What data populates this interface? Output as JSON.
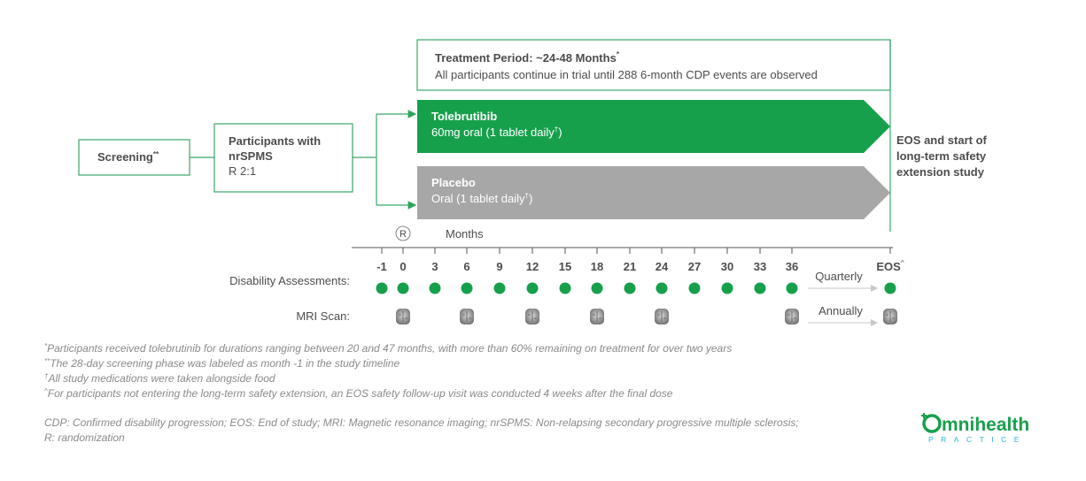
{
  "treatment_period": {
    "title": "Treatment Period: ~24-48 Months",
    "title_mark": "*",
    "description": "All participants continue in trial until 288 6-month CDP events are observed"
  },
  "screening": {
    "label": "Screening",
    "mark": "**"
  },
  "participants": {
    "title_lines": [
      "Participants with",
      "nrSPMS"
    ],
    "ratio": "R 2:1"
  },
  "arms": [
    {
      "name": "Tolebrutibib",
      "dose": "60mg oral (1 tablet daily",
      "dose_mark": "†",
      "dose_end": ")"
    },
    {
      "name": "Placebo",
      "dose": "Oral (1 tablet daily",
      "dose_mark": "†",
      "dose_end": ")"
    }
  ],
  "end_of_study": {
    "lines": [
      "EOS and start of",
      "long-term safety",
      "extension study"
    ]
  },
  "timeline": {
    "randomization": "R",
    "unit": "Months",
    "ticks": [
      -1,
      0,
      3,
      6,
      9,
      12,
      15,
      18,
      21,
      24,
      27,
      30,
      33,
      36
    ],
    "end_tick": "EOS",
    "end_mark": "^"
  },
  "schedule": [
    {
      "label": "Disability Assessments:",
      "frequency": "Quarterly"
    },
    {
      "label": "MRI Scan:",
      "frequency": "Annually"
    }
  ],
  "footnotes": [
    {
      "mark": "*",
      "text": "Participants received tolebrutinib for durations ranging between 20 and 47 months, with more than 60% remaining on treatment for over two years"
    },
    {
      "mark": "**",
      "text": "The 28-day screening phase was labeled as month -1 in the study timeline"
    },
    {
      "mark": "†",
      "text": "All study medications were taken alongside food"
    },
    {
      "mark": "^",
      "text": "For participants not entering the long-term safety extension, an EOS safety follow-up visit was conducted 4 weeks after the final dose"
    }
  ],
  "abbreviations": [
    "CDP: Confirmed disability progression; EOS: End of study; MRI: Magnetic resonance imaging; nrSPMS: Non-relapsing secondary progressive multiple sclerosis;",
    "R: randomization"
  ],
  "logo": {
    "name": "mnihealth",
    "tagline": "PRACTICE"
  }
}
